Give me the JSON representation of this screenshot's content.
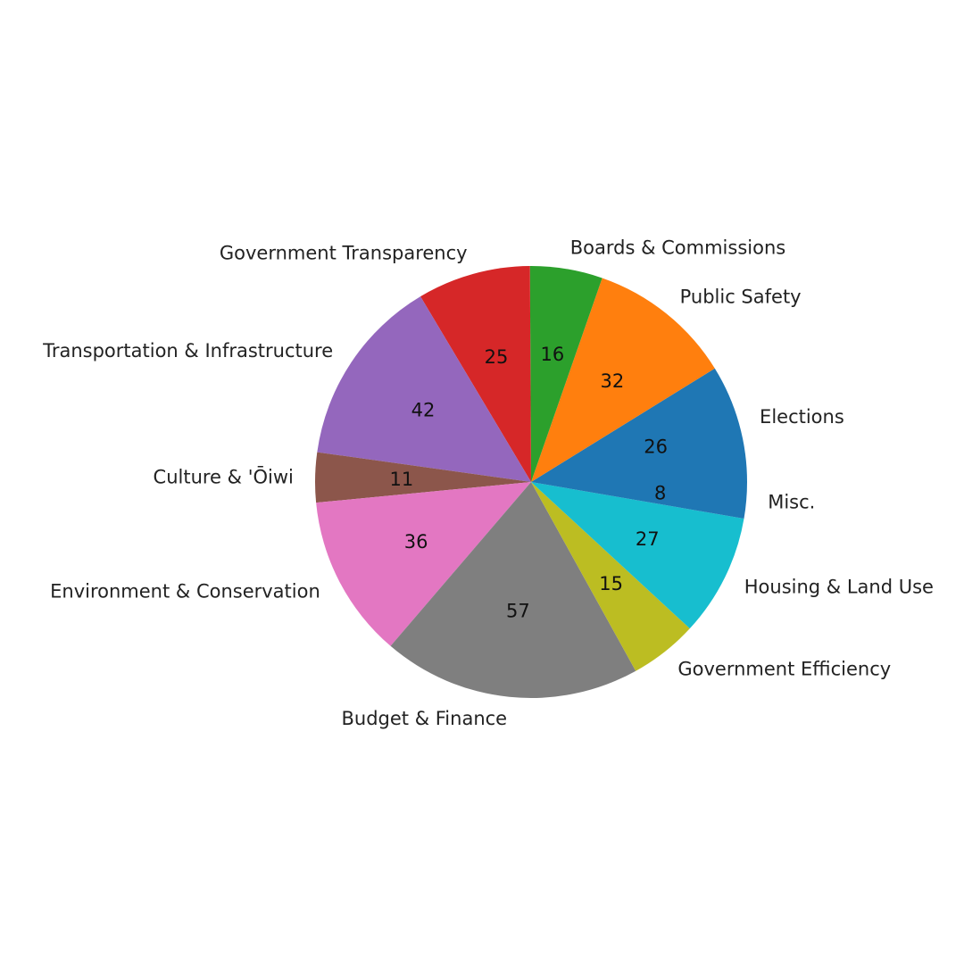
{
  "chart_data": {
    "type": "pie",
    "title": "",
    "start_angle_deg": 0,
    "direction": "counterclockwise",
    "slices": [
      {
        "label": "Elections",
        "value": 26,
        "value_label": "26",
        "color": "#1f77b4"
      },
      {
        "label": "Public Safety",
        "value": 32,
        "value_label": "32",
        "color": "#ff7f0e"
      },
      {
        "label": "Boards & Commissions",
        "value": 16,
        "value_label": "16",
        "color": "#2ca02c"
      },
      {
        "label": "Government Transparency",
        "value": 25,
        "value_label": "25",
        "color": "#d62728"
      },
      {
        "label": "Transportation & Infrastructure",
        "value": 42,
        "value_label": "42",
        "color": "#9467bd"
      },
      {
        "label": "Culture & 'Ōiwi",
        "value": 11,
        "value_label": "11",
        "color": "#8c564b"
      },
      {
        "label": "Environment & Conservation",
        "value": 36,
        "value_label": "36",
        "color": "#e377c2"
      },
      {
        "label": "Budget & Finance",
        "value": 57,
        "value_label": "57",
        "color": "#7f7f7f"
      },
      {
        "label": "Government Efficiency",
        "value": 15,
        "value_label": "15",
        "color": "#bcbd22"
      },
      {
        "label": "Housing & Land Use",
        "value": 27,
        "value_label": "27",
        "color": "#17becf"
      },
      {
        "label": "Misc.",
        "value": 8,
        "value_label": "8",
        "color": "#1f77b4"
      }
    ]
  }
}
